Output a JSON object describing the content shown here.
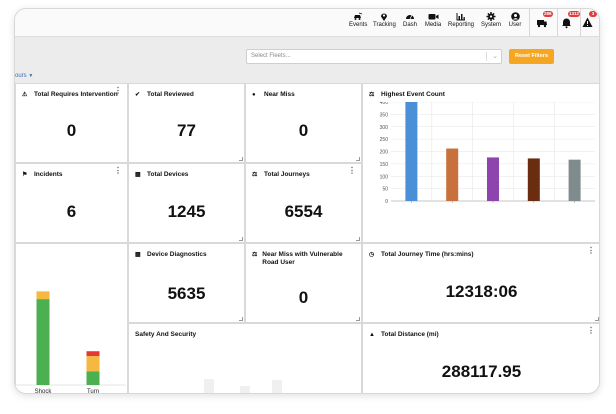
{
  "nav": {
    "items": [
      {
        "label": "Events",
        "icon": "car-crash-icon"
      },
      {
        "label": "Tracking",
        "icon": "map-pin-icon"
      },
      {
        "label": "Dash",
        "icon": "gauge-icon"
      },
      {
        "label": "Media",
        "icon": "video-camera-icon"
      },
      {
        "label": "Reporting",
        "icon": "bar-chart-icon"
      },
      {
        "label": "System",
        "icon": "gear-icon"
      },
      {
        "label": "User",
        "icon": "user-icon"
      }
    ],
    "notifications": [
      {
        "icon": "truck-alert-icon",
        "badge": "286"
      },
      {
        "icon": "bell-icon",
        "badge": "1312"
      },
      {
        "icon": "warning-icon",
        "badge": "3"
      }
    ]
  },
  "filters": {
    "fleet_placeholder": "Select Fleets...",
    "reset_label": "Reset Filters",
    "hours_label": "ours"
  },
  "cards": {
    "requires_intervention": {
      "title": "Total Requires Intervention",
      "value": "0"
    },
    "reviewed": {
      "title": "Total Reviewed",
      "value": "77"
    },
    "near_miss": {
      "title": "Near Miss",
      "value": "0"
    },
    "incidents": {
      "title": "Incidents",
      "value": "6"
    },
    "devices": {
      "title": "Total Devices",
      "value": "1245"
    },
    "journeys": {
      "title": "Total Journeys",
      "value": "6554"
    },
    "device_diagnostics": {
      "title": "Device Diagnostics",
      "value": "5635"
    },
    "near_miss_vru": {
      "title": "Near Miss with Vulnerable Road User",
      "value": "0"
    },
    "journey_time": {
      "title": "Total Journey Time (hrs:mins)",
      "value": "12318:06"
    },
    "safety_security": {
      "title": "Safety And Security"
    },
    "distance": {
      "title": "Total Distance (mi)",
      "value": "288117.95"
    },
    "highest_event": {
      "title": "Highest Event Count"
    }
  },
  "chart_data": [
    {
      "type": "bar",
      "title": "Highest Event Count",
      "categories": [
        "",
        "",
        "",
        "",
        ""
      ],
      "values": [
        400,
        212,
        176,
        172,
        167
      ],
      "colors": [
        "#4a90d9",
        "#c8713d",
        "#8e44ad",
        "#6b2d0f",
        "#7f8c8d"
      ],
      "ylim": [
        0,
        400
      ],
      "yticks": [
        "0",
        "50",
        "100",
        "150",
        "200",
        "250",
        "300",
        "350",
        "400"
      ],
      "grid": true
    },
    {
      "type": "bar",
      "stacked": true,
      "categories": [
        "Shock",
        "Turn"
      ],
      "series": [
        {
          "color": "#4caf50",
          "values": [
            89,
            14
          ]
        },
        {
          "color": "#f5b942",
          "values": [
            8,
            16
          ]
        },
        {
          "color": "#e53935",
          "values": [
            0,
            5
          ]
        }
      ],
      "ylim": [
        0,
        115
      ]
    }
  ]
}
